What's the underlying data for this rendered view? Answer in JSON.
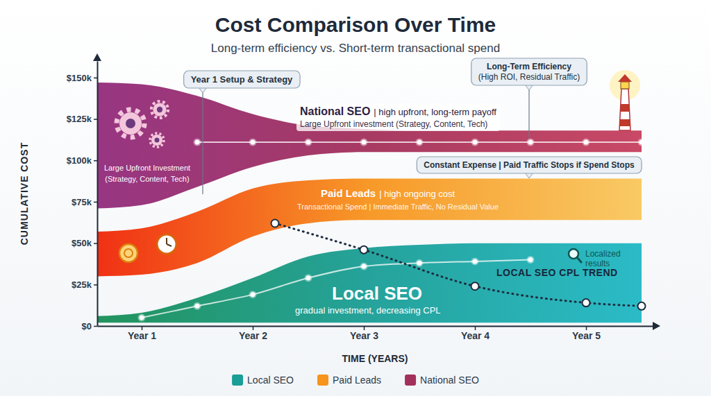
{
  "chart_data": {
    "type": "area",
    "title": "Cost Comparison Over Time",
    "subtitle": "Long-term efficiency vs. Short-term transactional spend",
    "x_label": "TIME (YEARS)",
    "y_label": "CUMULATIVE COST",
    "x": [
      0.6,
      1,
      1.5,
      2,
      2.5,
      3,
      3.5,
      4,
      4.5,
      5,
      5.5
    ],
    "xlim": [
      0.6,
      5.6
    ],
    "xticks": [
      {
        "value": 1,
        "label": "Year 1"
      },
      {
        "value": 2,
        "label": "Year 2"
      },
      {
        "value": 3,
        "label": "Year 3"
      },
      {
        "value": 4,
        "label": "Year 4"
      },
      {
        "value": 5,
        "label": "Year 5"
      }
    ],
    "ylim": [
      0,
      160000
    ],
    "yticks": [
      {
        "value": 0,
        "label": "$0"
      },
      {
        "value": 25000,
        "label": "$25k"
      },
      {
        "value": 50000,
        "label": "$50k"
      },
      {
        "value": 75000,
        "label": "$75k"
      },
      {
        "value": 100000,
        "label": "$100k"
      },
      {
        "value": 125000,
        "label": "$125k"
      },
      {
        "value": 150000,
        "label": "$150k"
      }
    ],
    "grid": false,
    "legend": "bottom",
    "series": [
      {
        "name": "Local SEO",
        "color": "#1a9e96",
        "type": "area",
        "values": [
          6000,
          8000,
          17000,
          29000,
          42000,
          47000,
          49000,
          50000,
          50000,
          50000,
          50000
        ],
        "lower": [
          2000,
          2000,
          2000,
          2000,
          2000,
          2000,
          2000,
          2000,
          2000,
          2000,
          2000
        ],
        "center": [
          null,
          5000,
          12000,
          19000,
          29000,
          36000,
          38000,
          39000,
          40000,
          null,
          null
        ],
        "marker": "circle"
      },
      {
        "name": "Paid Leads",
        "color": "#f7941d",
        "type": "area",
        "values": [
          57000,
          59000,
          69000,
          83000,
          88000,
          89000,
          89000,
          89000,
          89000,
          89000,
          89000
        ],
        "lower": [
          30000,
          31000,
          38000,
          54000,
          62000,
          64000,
          64000,
          64000,
          64000,
          64000,
          64000
        ]
      },
      {
        "name": "National SEO",
        "color": "#a3305a",
        "type": "area",
        "values": [
          147000,
          146000,
          139000,
          128000,
          121000,
          119000,
          118000,
          118000,
          118000,
          118000,
          118000
        ],
        "lower": [
          71000,
          73000,
          84000,
          96000,
          103000,
          105000,
          105000,
          105000,
          105000,
          105000,
          105000
        ],
        "center": [
          null,
          null,
          111000,
          111000,
          111000,
          111000,
          111000,
          111000,
          111000,
          111000,
          111000
        ],
        "marker": "circle"
      }
    ],
    "trend": {
      "name": "LOCAL SEO CPL TREND",
      "color": "#1e2d3f",
      "type": "line",
      "line_style": "dotted",
      "marker": "circle",
      "x": [
        2.2,
        3,
        4,
        5,
        5.5
      ],
      "values": [
        62000,
        46000,
        24000,
        14000,
        12000
      ]
    },
    "annotations": [
      "Year 1 Setup & Strategy",
      "Long-Term Efficiency",
      "(High ROI, Residual Traffic)",
      "Constant Expense | Paid Traffic Stops if Spend Stops",
      "Large Upfront Investment",
      "(Strategy, Content, Tech)",
      "| high upfront, long-term payoff",
      "Large Upfront investment (Strategy, Content, Tech)",
      "| high ongoing cost",
      "Transactional Spend | Immediate Traffic, No Residual Value",
      "gradual investment, decreasing CPL",
      "Localized",
      "results"
    ]
  }
}
